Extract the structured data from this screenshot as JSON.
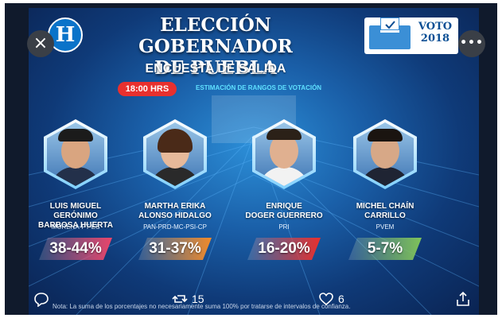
{
  "poster": {
    "logo_letter": "H",
    "title_line1": "ELECCIÓN GOBERNADOR",
    "title_line2": "DE PUEBLA",
    "subtitle": "ENCUESTA DE SALIDA",
    "time_badge": "18:00 HRS",
    "estimation_label": "ESTIMACIÓN DE RANGOS DE VOTACIÓN",
    "voto_line1": "VOTO",
    "voto_line2": "2018",
    "note": "Nota: La suma de los porcentajes no necesariamente suma 100% por tratarse de intervalos de confianza.",
    "candidates": [
      {
        "name_line1": "LUIS MIGUEL GERÓNIMO",
        "name_line2": "BARBOSA HUERTA",
        "party": "MORENA-PT-ES",
        "range": "38-44%",
        "range_color": "#e9456a"
      },
      {
        "name_line1": "MARTHA ERIKA",
        "name_line2": "ALONSO HIDALGO",
        "party": "PAN-PRD-MC-PSI-CP",
        "range": "31-37%",
        "range_color": "#f08a2a"
      },
      {
        "name_line1": "ENRIQUE",
        "name_line2": "DOGER GUERRERO",
        "party": "PRI",
        "range": "16-20%",
        "range_color": "#e8302e"
      },
      {
        "name_line1": "MICHEL CHAÍN",
        "name_line2": "CARRILLO",
        "party": "PVEM",
        "range": "5-7%",
        "range_color": "#7fc35a"
      }
    ]
  },
  "viewer": {
    "close_icon": "close-icon",
    "more_icon": "more-icon",
    "reply_icon": "reply-icon",
    "retweet_count": "15",
    "like_count": "6",
    "share_icon": "share-icon"
  },
  "colors": {
    "background": "#101a2c",
    "poster_blue": "#1a5fa8",
    "accent_cyan": "#5fe0ff"
  }
}
